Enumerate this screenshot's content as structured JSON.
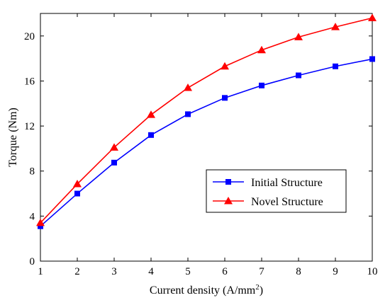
{
  "chart_data": {
    "type": "line",
    "title": "",
    "xlabel": "Current density (A/mm",
    "xlabel_sup": "2",
    "xlabel_end": ")",
    "ylabel": "Torque (Nm)",
    "x": [
      1,
      2,
      3,
      4,
      5,
      6,
      7,
      8,
      9,
      10
    ],
    "xlim": [
      1,
      10
    ],
    "ylim": [
      0,
      22
    ],
    "xticks": [
      1,
      2,
      3,
      4,
      5,
      6,
      7,
      8,
      9,
      10
    ],
    "yticks": [
      0,
      4,
      8,
      12,
      16,
      20
    ],
    "grid": false,
    "legend_position": "middle-right",
    "series": [
      {
        "name": "Initial Structure",
        "color": "#0000ff",
        "marker": "square",
        "values": [
          3.1,
          6.0,
          8.75,
          11.2,
          13.05,
          14.5,
          15.6,
          16.5,
          17.3,
          17.95
        ]
      },
      {
        "name": "Novel Structure",
        "color": "#ff0000",
        "marker": "triangle",
        "values": [
          3.4,
          6.85,
          10.1,
          13.0,
          15.4,
          17.3,
          18.75,
          19.9,
          20.8,
          21.6
        ]
      }
    ]
  }
}
